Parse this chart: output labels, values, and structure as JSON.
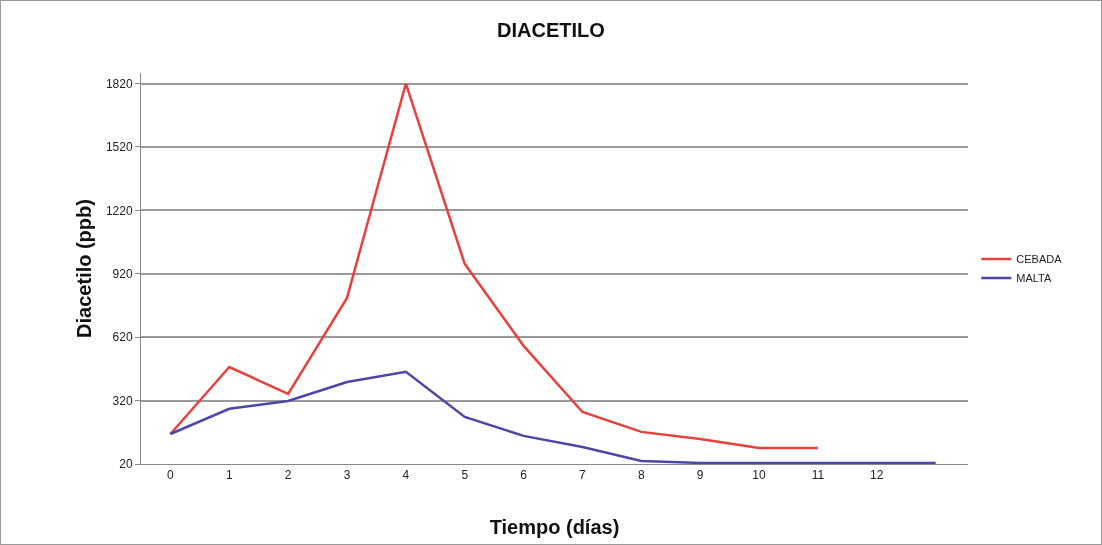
{
  "chart_data": {
    "type": "line",
    "title": "DIACETILO",
    "xlabel": "Tiempo (días)",
    "ylabel": "Diacetilo (ppb)",
    "x": [
      0,
      1,
      2,
      3,
      4,
      5,
      6,
      7,
      8,
      9,
      10,
      11,
      12,
      13
    ],
    "series": [
      {
        "name": "CEBADA",
        "color": "#e8413c",
        "values": [
          162,
          479,
          352,
          806,
          1820,
          967,
          579,
          266,
          172,
          138,
          96,
          96,
          null,
          null
        ]
      },
      {
        "name": "MALTA",
        "color": "#4b46a8",
        "values": [
          162,
          281,
          318,
          408,
          456,
          243,
          153,
          100,
          34,
          25,
          25,
          25,
          25,
          25
        ]
      }
    ],
    "xlim": [
      -0.5,
      13.55
    ],
    "xticks": [
      0,
      1,
      2,
      3,
      4,
      5,
      6,
      7,
      8,
      9,
      10,
      11,
      12
    ],
    "ylim": [
      20,
      1870
    ],
    "yticks": [
      20,
      320,
      620,
      920,
      1220,
      1520,
      1820
    ],
    "grid": "y",
    "legend": "right",
    "marker": "none",
    "line_style": "solid"
  }
}
